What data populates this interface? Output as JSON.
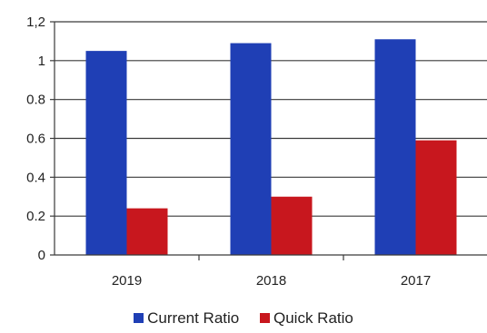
{
  "chart_data": {
    "type": "bar",
    "categories": [
      "2019",
      "2018",
      "2017"
    ],
    "series": [
      {
        "name": "Current Ratio",
        "values": [
          1.05,
          1.09,
          1.11
        ],
        "color": "#1f3fb5"
      },
      {
        "name": "Quick Ratio",
        "values": [
          0.24,
          0.3,
          0.59
        ],
        "color": "#c8171e"
      }
    ],
    "y_ticks": [
      "0",
      "0.2",
      "0.4",
      "0.6",
      "0.8",
      "1",
      "1,2"
    ],
    "ylim": [
      0,
      1.2
    ],
    "grid": true,
    "legend_position": "bottom",
    "title": "",
    "xlabel": "",
    "ylabel": ""
  }
}
